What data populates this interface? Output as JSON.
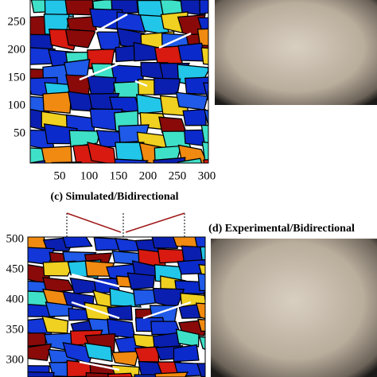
{
  "panel_top": {
    "yticks": [
      "250",
      "200",
      "150",
      "100",
      "50"
    ],
    "xticks": [
      "50",
      "100",
      "150",
      "200",
      "250",
      "300"
    ]
  },
  "panel_c": {
    "caption": "(c) Simulated/Bidirectional",
    "yticks": [
      "500",
      "450",
      "400",
      "350",
      "300"
    ]
  },
  "panel_d": {
    "caption": "(d) Experimental/Bidirectional"
  }
}
